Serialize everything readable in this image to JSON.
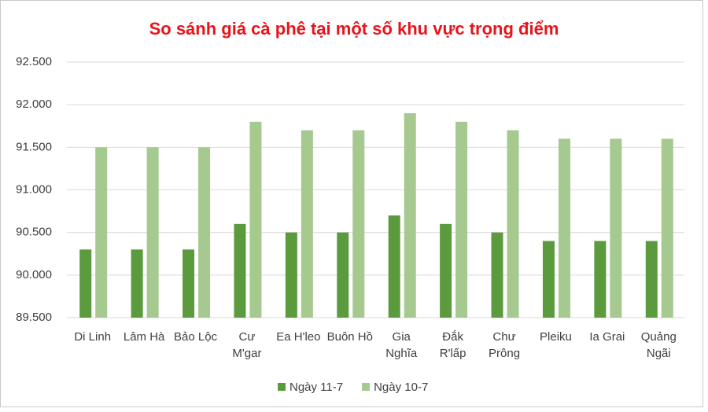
{
  "chart_data": {
    "type": "bar",
    "title": "So sánh giá cà phê tại một số khu vực trọng điểm",
    "categories": [
      [
        "Di Linh"
      ],
      [
        "Lâm Hà"
      ],
      [
        "Bảo Lộc"
      ],
      [
        "Cư",
        "M'gar"
      ],
      [
        "Ea H'leo"
      ],
      [
        "Buôn Hồ"
      ],
      [
        "Gia",
        "Nghĩa"
      ],
      [
        "Đắk",
        "R'lấp"
      ],
      [
        "Chư",
        "Prông"
      ],
      [
        "Pleiku"
      ],
      [
        "Ia Grai"
      ],
      [
        "Quảng",
        "Ngãi"
      ]
    ],
    "series": [
      {
        "name": "Ngày 11-7",
        "color": "#5b9a3d",
        "values": [
          90300,
          90300,
          90300,
          90600,
          90500,
          90500,
          90700,
          90600,
          90500,
          90400,
          90400,
          90400
        ]
      },
      {
        "name": "Ngày 10-7",
        "color": "#a5c98e",
        "values": [
          91500,
          91500,
          91500,
          91800,
          91700,
          91700,
          91900,
          91800,
          91700,
          91600,
          91600,
          91600
        ]
      }
    ],
    "ylim": [
      89500,
      92500
    ],
    "yticks": [
      {
        "value": 89500,
        "label": "89.500"
      },
      {
        "value": 90000,
        "label": "90.000"
      },
      {
        "value": 90500,
        "label": "90.500"
      },
      {
        "value": 91000,
        "label": "91.000"
      },
      {
        "value": 91500,
        "label": "91.500"
      },
      {
        "value": 92000,
        "label": "92.000"
      },
      {
        "value": 92500,
        "label": "92.500"
      }
    ],
    "grid": true,
    "legend": "bottom"
  }
}
